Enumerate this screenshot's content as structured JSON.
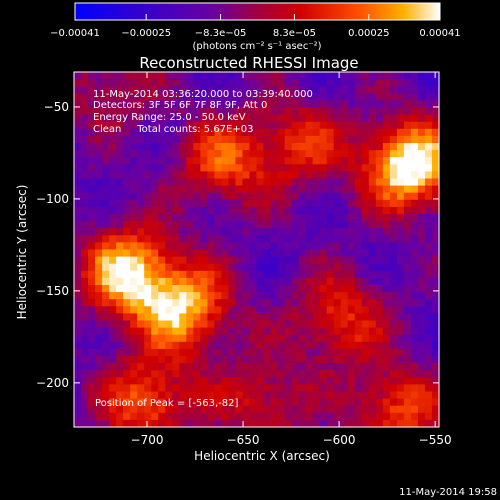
{
  "chart_data": {
    "type": "heatmap",
    "title": "Reconstructed RHESSI Image",
    "xlabel": "Heliocentric X (arcsec)",
    "ylabel": "Heliocentric Y (arcsec)",
    "xlim": [
      -738,
      -548
    ],
    "ylim": [
      -224,
      -31
    ],
    "x_ticks": [
      -700,
      -650,
      -600,
      -550
    ],
    "x_tick_labels": [
      "−700",
      "−650",
      "−600",
      "−550"
    ],
    "y_ticks": [
      -50,
      -100,
      -150,
      -200
    ],
    "y_tick_labels": [
      "−50",
      "−100",
      "−150",
      "−200"
    ],
    "colorbar": {
      "range": [
        -0.00041,
        0.00041
      ],
      "ticks": [
        -0.00041,
        -0.00025,
        -8.3e-05,
        8.3e-05,
        0.00025,
        0.00041
      ],
      "tick_labels": [
        "−0.00041",
        "−0.00025",
        "−8.3e−05",
        "8.3e−05",
        "0.00025",
        "0.00041"
      ],
      "unit_label": "(photons cm⁻² s⁻¹ asec⁻²)",
      "colors": [
        "#0000ff",
        "#4b00b0",
        "#7a00a0",
        "#c00000",
        "#ff4400",
        "#ff9900",
        "#ffffff"
      ]
    },
    "sources": [
      {
        "x": -563,
        "y": -82,
        "amplitude": 1.0
      },
      {
        "x": -710,
        "y": -140,
        "amplitude": 0.85
      },
      {
        "x": -680,
        "y": -160,
        "amplitude": 0.75
      },
      {
        "x": -660,
        "y": -80,
        "amplitude": 0.55
      },
      {
        "x": -620,
        "y": -70,
        "amplitude": 0.45
      },
      {
        "x": -700,
        "y": -210,
        "amplitude": 0.6
      },
      {
        "x": -600,
        "y": -165,
        "amplitude": 0.5
      },
      {
        "x": -640,
        "y": -210,
        "amplitude": 0.4
      },
      {
        "x": -570,
        "y": -215,
        "amplitude": 0.55
      },
      {
        "x": -720,
        "y": -40,
        "amplitude": 0.3
      }
    ],
    "annotations": {
      "time": "11-May-2014 03:36:20.000 to 03:39:40.000",
      "detectors": "Detectors: 3F 5F 6F 7F 8F 9F, Att 0",
      "energy": "Energy Range: 25.0 - 50.0 keV",
      "clean": "Clean     Total counts: 5.67E+03",
      "peak": "Position of Peak = [-563,-82]"
    }
  },
  "footer": {
    "timestamp": "11-May-2014 19:58"
  }
}
